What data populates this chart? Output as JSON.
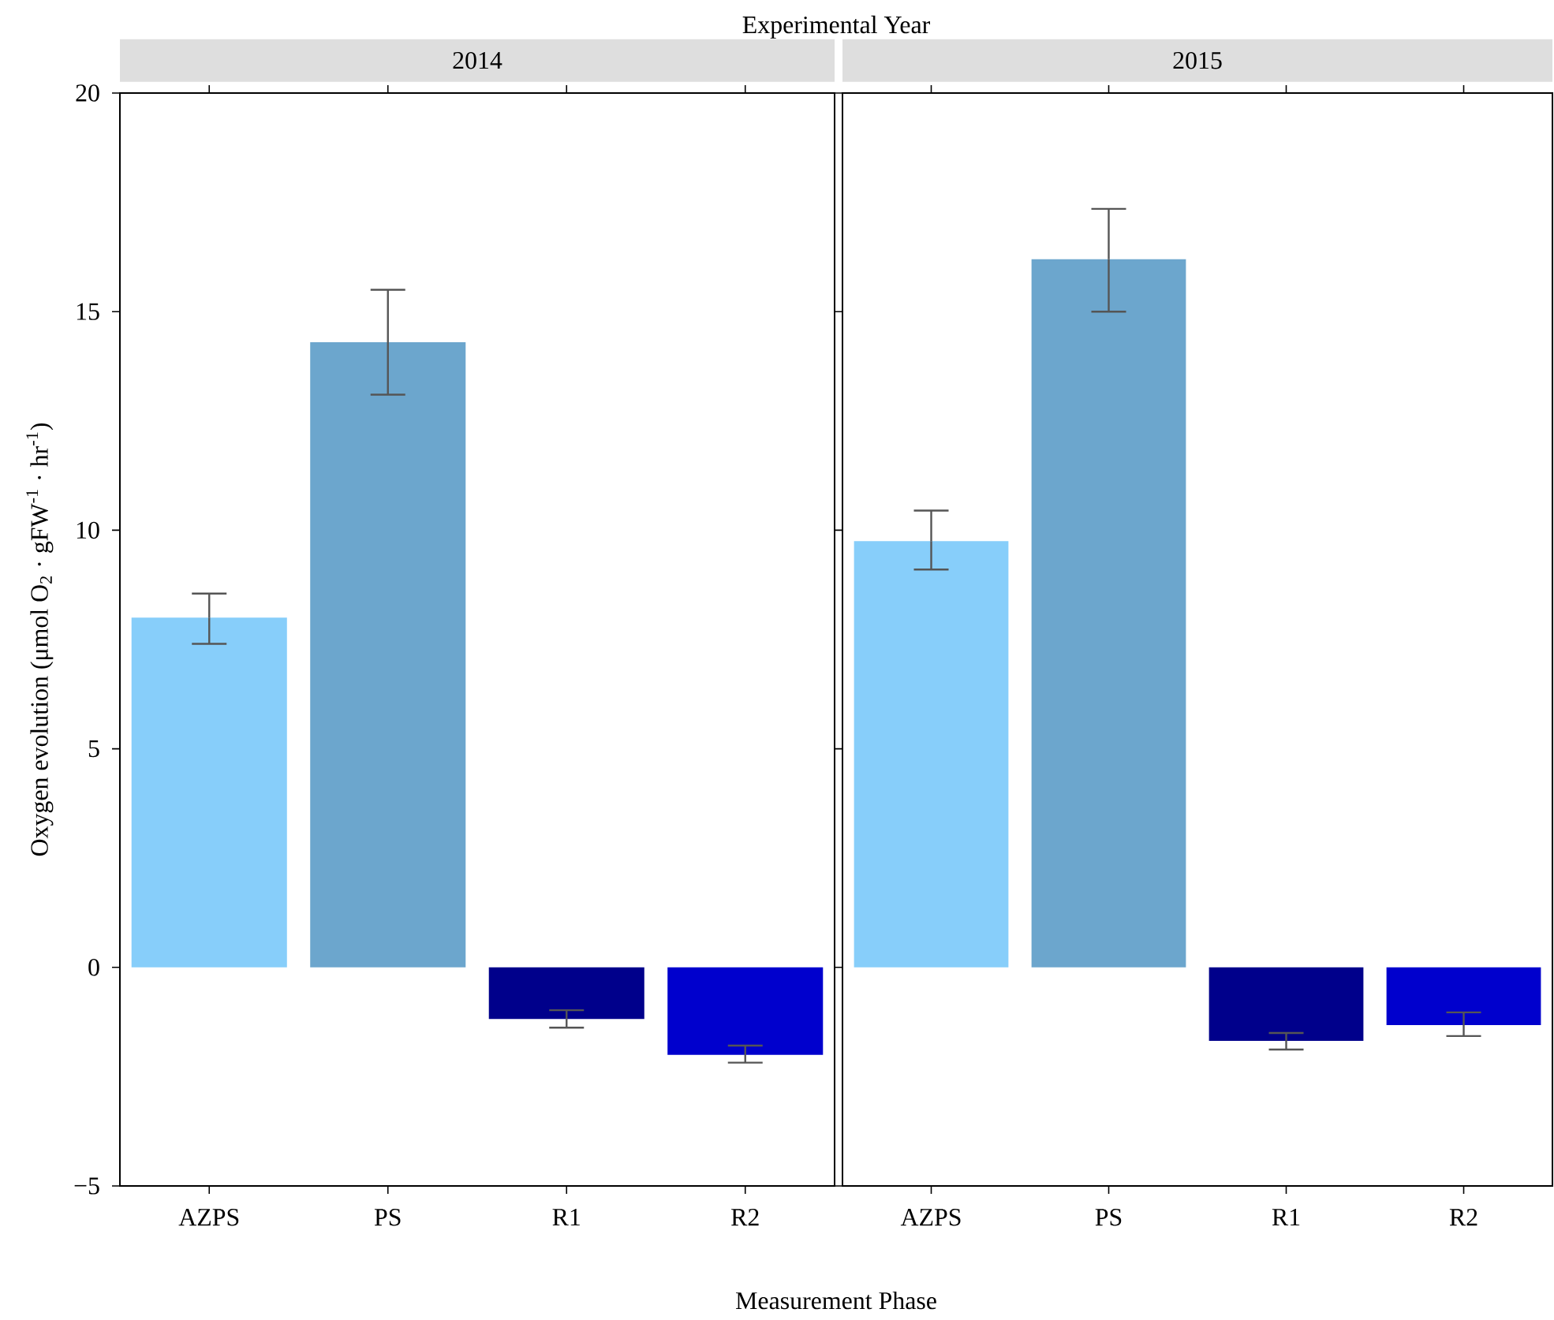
{
  "chart_data": [
    {
      "type": "bar",
      "title": "2014",
      "annotations": [
        "Experimental Year"
      ],
      "xlabel": "Measurement Phase",
      "ylabel": "Oxygen evolution (μmol O$_{2}$ · gFW$^{-1}$ · hr$^{-1}$)",
      "categories": [
        "AZPS",
        "PS",
        "R1",
        "R2"
      ],
      "values": [
        8.0,
        14.3,
        -1.18,
        -2.0
      ],
      "colors": [
        "#87cefa",
        "#6ca6cd",
        "#00008b",
        "#0000cd"
      ],
      "errors": [
        [
          7.4,
          8.55
        ],
        [
          13.1,
          15.5
        ],
        [
          -1.38,
          -0.98
        ],
        [
          -2.18,
          -1.79
        ]
      ],
      "ylim": [
        -5,
        20
      ],
      "yticks": [
        {
          "value": -5,
          "label": "−5"
        },
        0,
        5,
        10,
        15,
        20
      ]
    },
    {
      "type": "bar",
      "title": "2015",
      "tick_labels": "x",
      "categories": [
        "AZPS",
        "PS",
        "R1",
        "R2"
      ],
      "values": [
        9.75,
        16.2,
        -1.68,
        -1.32
      ],
      "colors": [
        "#87cefa",
        "#6ca6cd",
        "#00008b",
        "#0000cd"
      ],
      "errors": [
        [
          9.1,
          10.45
        ],
        [
          15.0,
          17.35
        ],
        [
          -1.88,
          -1.5
        ],
        [
          -1.57,
          -1.03
        ]
      ],
      "ylim": [
        -5,
        20
      ],
      "yticks": [
        -5,
        0,
        5,
        10,
        15,
        20
      ]
    }
  ]
}
